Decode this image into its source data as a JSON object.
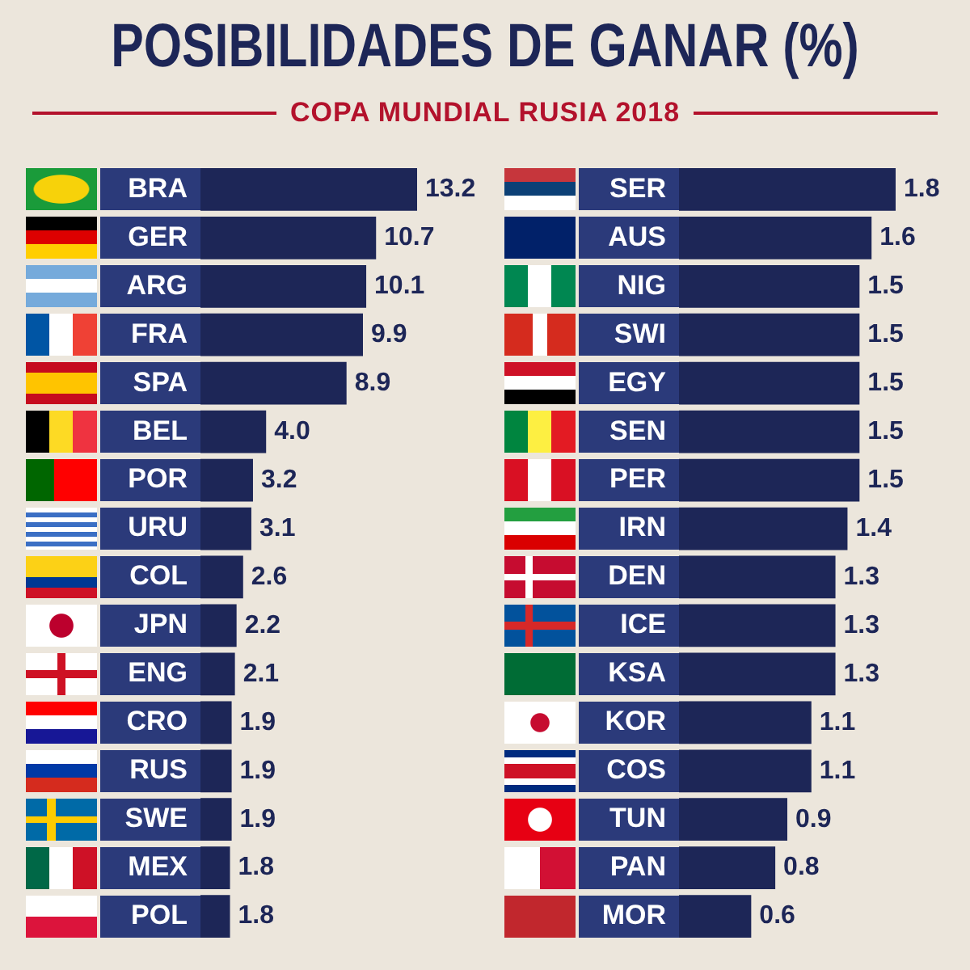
{
  "chart_data": [
    {
      "type": "bar",
      "orientation": "horizontal",
      "title": "POSIBILIDADES DE GANAR (%)",
      "subtitle": "COPA MUNDIAL RUSIA 2018",
      "color": "#1d2657",
      "categories": [
        "BRA",
        "GER",
        "ARG",
        "FRA",
        "SPA",
        "BEL",
        "POR",
        "URU",
        "COL",
        "JPN",
        "ENG",
        "CRO",
        "RUS",
        "SWE",
        "MEX",
        "POL"
      ],
      "values": [
        13.2,
        10.7,
        10.1,
        9.9,
        8.9,
        4.0,
        3.2,
        3.1,
        2.6,
        2.2,
        2.1,
        1.9,
        1.9,
        1.9,
        1.8,
        1.8
      ],
      "value_labels": [
        "13.2",
        "10.7",
        "10.1",
        "9.9",
        "8.9",
        "4.0",
        "3.2",
        "3.1",
        "2.6",
        "2.2",
        "2.1",
        "1.9",
        "1.9",
        "1.9",
        "1.8",
        "1.8"
      ]
    },
    {
      "type": "bar",
      "orientation": "horizontal",
      "color": "#1d2657",
      "categories": [
        "SER",
        "AUS",
        "NIG",
        "SWI",
        "EGY",
        "SEN",
        "PER",
        "IRN",
        "DEN",
        "ICE",
        "KSA",
        "KOR",
        "COS",
        "TUN",
        "PAN",
        "MOR"
      ],
      "values": [
        1.8,
        1.6,
        1.5,
        1.5,
        1.5,
        1.5,
        1.5,
        1.4,
        1.3,
        1.3,
        1.3,
        1.1,
        1.1,
        0.9,
        0.8,
        0.6
      ],
      "value_labels": [
        "1.8",
        "1.6",
        "1.5",
        "1.5",
        "1.5",
        "1.5",
        "1.5",
        "1.4",
        "1.3",
        "1.3",
        "1.3",
        "1.1",
        "1.1",
        "0.9",
        "0.8",
        "0.6"
      ]
    }
  ]
}
